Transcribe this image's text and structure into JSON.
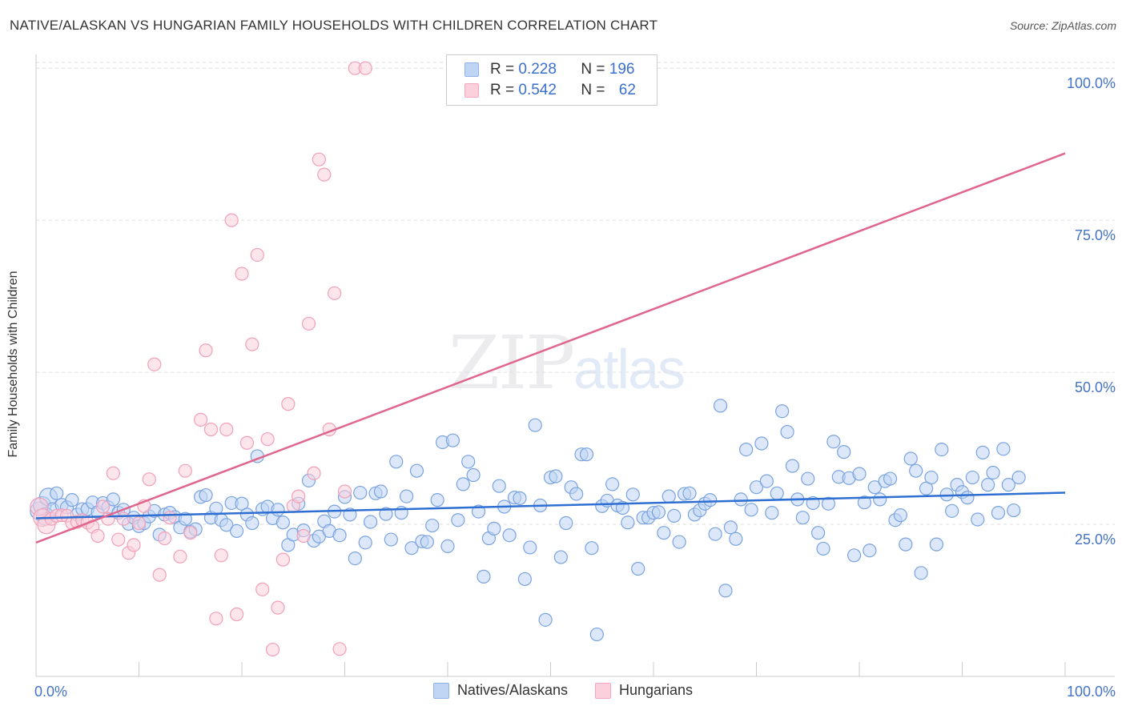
{
  "title": "NATIVE/ALASKAN VS HUNGARIAN FAMILY HOUSEHOLDS WITH CHILDREN CORRELATION CHART",
  "source": "Source: ZipAtlas.com",
  "watermark": {
    "zip": "ZIP",
    "atlas": "atlas"
  },
  "legend": {
    "r_label": "R =",
    "n_label": "N =",
    "rows": [
      {
        "r": "0.228",
        "n": "196"
      },
      {
        "r": "0.542",
        "n": "62"
      }
    ]
  },
  "chart_data": {
    "type": "scatter",
    "title": "NATIVE/ALASKAN VS HUNGARIAN FAMILY HOUSEHOLDS WITH CHILDREN CORRELATION CHART",
    "xlabel": "",
    "ylabel": "Family Households with Children",
    "xlim": [
      0,
      100
    ],
    "ylim": [
      0,
      102
    ],
    "x_tick_labels": [
      "0.0%",
      "100.0%"
    ],
    "y_tick_labels": [
      "25.0%",
      "50.0%",
      "75.0%",
      "100.0%"
    ],
    "y_ticks": [
      25,
      50,
      75,
      100
    ],
    "grid": true,
    "legend_position": "top-center",
    "colors": {
      "natives": "#8fb3e8",
      "natives_line": "#2e6fd1",
      "hungarians": "#f4a7bd",
      "hungarians_line": "#e0668d"
    },
    "series": [
      {
        "name": "Natives/Alaskans",
        "trend": [
          [
            0,
            26.0
          ],
          [
            100,
            30.2
          ]
        ],
        "points": [
          [
            0.3,
            27.2
          ],
          [
            0.6,
            28.1
          ],
          [
            0.9,
            26.3
          ],
          [
            1.2,
            29.5
          ],
          [
            1.6,
            27.5
          ],
          [
            2.0,
            30.1
          ],
          [
            2.5,
            28.2
          ],
          [
            3.0,
            27.8
          ],
          [
            3.5,
            29.0
          ],
          [
            4.0,
            26.6
          ],
          [
            4.5,
            27.5
          ],
          [
            5.0,
            27.5
          ],
          [
            5.5,
            28.6
          ],
          [
            6.0,
            27.0
          ],
          [
            6.5,
            28.5
          ],
          [
            7.0,
            27.8
          ],
          [
            7.5,
            29.1
          ],
          [
            8.0,
            26.9
          ],
          [
            8.5,
            27.4
          ],
          [
            9.0,
            25.1
          ],
          [
            9.5,
            26.1
          ],
          [
            10.0,
            24.7
          ],
          [
            10.5,
            25.2
          ],
          [
            11.0,
            26.3
          ],
          [
            11.5,
            27.2
          ],
          [
            12.0,
            23.3
          ],
          [
            12.5,
            26.6
          ],
          [
            13.0,
            26.9
          ],
          [
            13.5,
            26.2
          ],
          [
            14.0,
            24.5
          ],
          [
            14.5,
            25.9
          ],
          [
            15.0,
            23.8
          ],
          [
            15.5,
            24.2
          ],
          [
            16.0,
            29.5
          ],
          [
            16.5,
            29.8
          ],
          [
            17.0,
            26.1
          ],
          [
            17.5,
            27.6
          ],
          [
            18.0,
            25.7
          ],
          [
            18.5,
            24.9
          ],
          [
            19.0,
            28.5
          ],
          [
            19.5,
            23.9
          ],
          [
            20.0,
            28.4
          ],
          [
            20.5,
            26.6
          ],
          [
            21.0,
            25.2
          ],
          [
            21.5,
            36.2
          ],
          [
            22.0,
            27.5
          ],
          [
            22.5,
            27.9
          ],
          [
            23.0,
            26.0
          ],
          [
            23.5,
            27.4
          ],
          [
            24.0,
            25.3
          ],
          [
            24.5,
            21.6
          ],
          [
            25.0,
            23.3
          ],
          [
            25.5,
            28.4
          ],
          [
            26.0,
            24.0
          ],
          [
            26.5,
            32.2
          ],
          [
            27.0,
            22.3
          ],
          [
            27.5,
            23.0
          ],
          [
            28.0,
            25.5
          ],
          [
            28.5,
            23.9
          ],
          [
            29.0,
            27.1
          ],
          [
            29.5,
            23.2
          ],
          [
            30.0,
            29.5
          ],
          [
            30.5,
            26.6
          ],
          [
            31.0,
            19.4
          ],
          [
            31.5,
            30.2
          ],
          [
            32.0,
            22.0
          ],
          [
            32.5,
            25.4
          ],
          [
            33.0,
            30.1
          ],
          [
            33.5,
            30.4
          ],
          [
            34.0,
            26.7
          ],
          [
            34.5,
            22.5
          ],
          [
            35.0,
            35.3
          ],
          [
            35.5,
            26.9
          ],
          [
            36.0,
            29.6
          ],
          [
            36.5,
            21.1
          ],
          [
            37.0,
            33.8
          ],
          [
            37.5,
            22.2
          ],
          [
            38.0,
            22.1
          ],
          [
            38.5,
            24.8
          ],
          [
            39.0,
            29.0
          ],
          [
            39.5,
            38.5
          ],
          [
            40.0,
            21.4
          ],
          [
            40.5,
            38.8
          ],
          [
            41.0,
            25.7
          ],
          [
            41.5,
            31.6
          ],
          [
            42.0,
            35.3
          ],
          [
            42.5,
            33.1
          ],
          [
            43.0,
            27.1
          ],
          [
            43.5,
            16.4
          ],
          [
            44.0,
            22.7
          ],
          [
            44.5,
            24.3
          ],
          [
            45.0,
            31.3
          ],
          [
            45.5,
            27.9
          ],
          [
            46.0,
            23.2
          ],
          [
            46.5,
            29.4
          ],
          [
            47.0,
            29.3
          ],
          [
            47.5,
            16.0
          ],
          [
            48.0,
            21.2
          ],
          [
            48.5,
            41.3
          ],
          [
            49.0,
            28.1
          ],
          [
            49.5,
            9.3
          ],
          [
            50.0,
            32.7
          ],
          [
            50.5,
            32.9
          ],
          [
            51.0,
            19.6
          ],
          [
            51.5,
            25.2
          ],
          [
            52.0,
            31.1
          ],
          [
            52.5,
            30.0
          ],
          [
            53.0,
            36.5
          ],
          [
            53.5,
            36.5
          ],
          [
            54.0,
            21.1
          ],
          [
            54.5,
            6.9
          ],
          [
            55.0,
            28.0
          ],
          [
            55.5,
            28.9
          ],
          [
            56.0,
            31.6
          ],
          [
            56.5,
            28.1
          ],
          [
            57.0,
            27.7
          ],
          [
            57.5,
            25.3
          ],
          [
            58.0,
            29.9
          ],
          [
            58.5,
            17.7
          ],
          [
            59.0,
            26.1
          ],
          [
            59.5,
            26.1
          ],
          [
            60.0,
            26.9
          ],
          [
            60.5,
            27.0
          ],
          [
            61.0,
            23.6
          ],
          [
            61.5,
            29.6
          ],
          [
            62.0,
            26.4
          ],
          [
            62.5,
            22.1
          ],
          [
            63.0,
            30.0
          ],
          [
            63.5,
            30.1
          ],
          [
            64.0,
            26.6
          ],
          [
            64.5,
            27.3
          ],
          [
            65.0,
            28.4
          ],
          [
            65.5,
            29.0
          ],
          [
            66.0,
            23.4
          ],
          [
            66.5,
            44.5
          ],
          [
            67.0,
            14.1
          ],
          [
            67.5,
            24.5
          ],
          [
            68.0,
            22.6
          ],
          [
            68.5,
            29.1
          ],
          [
            69.0,
            37.3
          ],
          [
            69.5,
            27.4
          ],
          [
            70.0,
            31.1
          ],
          [
            70.5,
            38.3
          ],
          [
            71.0,
            32.1
          ],
          [
            71.5,
            26.9
          ],
          [
            72.0,
            30.1
          ],
          [
            72.5,
            43.6
          ],
          [
            73.0,
            40.2
          ],
          [
            73.5,
            34.6
          ],
          [
            74.0,
            29.1
          ],
          [
            74.5,
            26.1
          ],
          [
            75.0,
            32.5
          ],
          [
            75.5,
            28.5
          ],
          [
            76.0,
            23.6
          ],
          [
            76.5,
            21.0
          ],
          [
            77.0,
            28.4
          ],
          [
            77.5,
            38.6
          ],
          [
            78.0,
            32.8
          ],
          [
            78.5,
            36.9
          ],
          [
            79.0,
            32.6
          ],
          [
            79.5,
            19.9
          ],
          [
            80.0,
            33.3
          ],
          [
            80.5,
            28.6
          ],
          [
            81.0,
            20.7
          ],
          [
            81.5,
            31.1
          ],
          [
            82.0,
            29.1
          ],
          [
            82.5,
            32.1
          ],
          [
            83.0,
            32.5
          ],
          [
            83.5,
            25.7
          ],
          [
            84.0,
            26.5
          ],
          [
            84.5,
            21.7
          ],
          [
            85.0,
            35.8
          ],
          [
            85.5,
            33.8
          ],
          [
            86.0,
            17.0
          ],
          [
            86.5,
            30.9
          ],
          [
            87.0,
            32.7
          ],
          [
            87.5,
            21.7
          ],
          [
            88.0,
            37.3
          ],
          [
            88.5,
            29.9
          ],
          [
            89.0,
            27.2
          ],
          [
            89.5,
            31.5
          ],
          [
            90.0,
            30.3
          ],
          [
            90.5,
            29.4
          ],
          [
            91.0,
            32.7
          ],
          [
            91.5,
            25.8
          ],
          [
            92.0,
            36.8
          ],
          [
            92.5,
            31.5
          ],
          [
            93.0,
            33.5
          ],
          [
            93.5,
            26.9
          ],
          [
            94.0,
            37.4
          ],
          [
            94.5,
            31.5
          ],
          [
            95.0,
            27.3
          ],
          [
            95.5,
            32.7
          ]
        ]
      },
      {
        "name": "Hungarians",
        "trend": [
          [
            0,
            22.0
          ],
          [
            100,
            86.0
          ]
        ],
        "points": [
          [
            0.3,
            27.9
          ],
          [
            0.6,
            26.1
          ],
          [
            1.0,
            24.9
          ],
          [
            1.5,
            25.9
          ],
          [
            2.0,
            26.4
          ],
          [
            2.5,
            26.5
          ],
          [
            3.0,
            26.4
          ],
          [
            3.5,
            25.2
          ],
          [
            4.0,
            25.4
          ],
          [
            4.5,
            25.7
          ],
          [
            5.0,
            25.3
          ],
          [
            5.5,
            24.6
          ],
          [
            6.0,
            23.1
          ],
          [
            6.5,
            27.9
          ],
          [
            7.0,
            25.9
          ],
          [
            7.5,
            33.4
          ],
          [
            8.0,
            22.5
          ],
          [
            8.5,
            25.9
          ],
          [
            9.0,
            20.3
          ],
          [
            9.5,
            21.6
          ],
          [
            10.0,
            25.2
          ],
          [
            10.5,
            28.0
          ],
          [
            11.0,
            32.4
          ],
          [
            11.5,
            51.3
          ],
          [
            12.0,
            16.7
          ],
          [
            12.5,
            22.7
          ],
          [
            13.0,
            26.1
          ],
          [
            14.0,
            19.7
          ],
          [
            14.5,
            33.8
          ],
          [
            15.0,
            23.6
          ],
          [
            16.0,
            42.2
          ],
          [
            16.5,
            53.6
          ],
          [
            17.0,
            40.6
          ],
          [
            17.5,
            9.5
          ],
          [
            18.0,
            19.9
          ],
          [
            18.5,
            40.6
          ],
          [
            19.0,
            75.0
          ],
          [
            19.5,
            10.2
          ],
          [
            20.0,
            66.2
          ],
          [
            20.5,
            38.4
          ],
          [
            21.0,
            54.6
          ],
          [
            21.5,
            69.3
          ],
          [
            22.0,
            14.3
          ],
          [
            22.5,
            39.0
          ],
          [
            23.0,
            4.4
          ],
          [
            23.5,
            11.3
          ],
          [
            24.0,
            19.2
          ],
          [
            24.5,
            44.8
          ],
          [
            25.0,
            28.0
          ],
          [
            25.5,
            29.6
          ],
          [
            26.0,
            23.1
          ],
          [
            26.5,
            58.0
          ],
          [
            27.0,
            33.4
          ],
          [
            27.5,
            85.0
          ],
          [
            28.0,
            82.5
          ],
          [
            28.5,
            40.6
          ],
          [
            29.0,
            63.0
          ],
          [
            29.5,
            4.5
          ],
          [
            30.0,
            30.4
          ],
          [
            31.0,
            100.0
          ],
          [
            32.0,
            100.0
          ]
        ]
      }
    ]
  },
  "bottom_legend": [
    {
      "name": "Natives/Alaskans"
    },
    {
      "name": "Hungarians"
    }
  ]
}
